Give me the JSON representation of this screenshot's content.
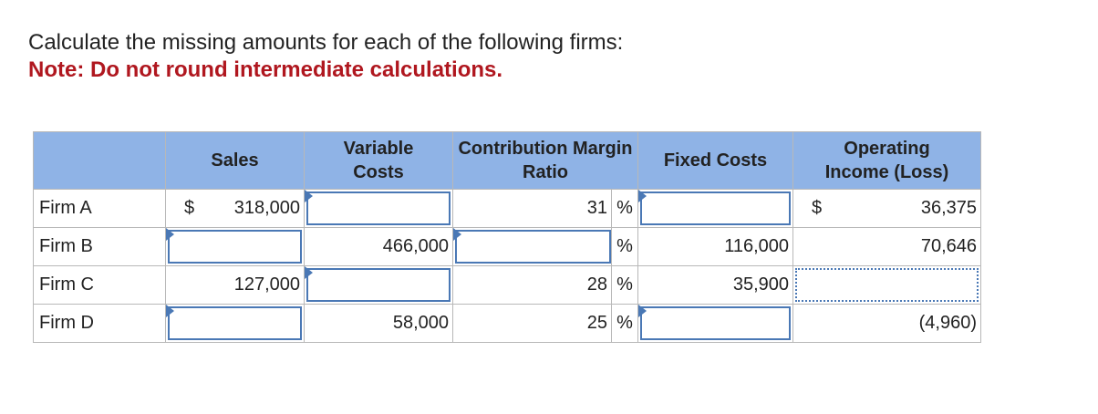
{
  "instructions": {
    "main": "Calculate the missing amounts for each of the following firms:",
    "note": "Note: Do not round intermediate calculations."
  },
  "table": {
    "headers": {
      "sales": "Sales",
      "variable_costs_line1": "Variable",
      "variable_costs_line2": "Costs",
      "cm_ratio_line1": "Contribution Margin",
      "cm_ratio_line2": "Ratio",
      "fixed_costs": "Fixed Costs",
      "operating_income_line1": "Operating",
      "operating_income_line2": "Income (Loss)"
    },
    "rows": [
      {
        "firm": "Firm A",
        "sales_symbol": "$",
        "sales": "318,000",
        "variable_costs": "",
        "cm_ratio": "31",
        "fixed_costs": "",
        "oi_symbol": "$",
        "operating_income": "36,375"
      },
      {
        "firm": "Firm B",
        "sales": "",
        "variable_costs": "466,000",
        "cm_ratio": "",
        "fixed_costs": "116,000",
        "operating_income": "70,646"
      },
      {
        "firm": "Firm C",
        "sales": "127,000",
        "variable_costs": "",
        "cm_ratio": "28",
        "fixed_costs": "35,900",
        "operating_income": ""
      },
      {
        "firm": "Firm D",
        "sales": "",
        "variable_costs": "58,000",
        "cm_ratio": "25",
        "fixed_costs": "",
        "operating_income": "(4,960)"
      }
    ],
    "percent_sign": "%"
  },
  "colors": {
    "header_bg": "#8fb3e6",
    "input_border": "#4a78b5",
    "note_red": "#b0171f"
  }
}
